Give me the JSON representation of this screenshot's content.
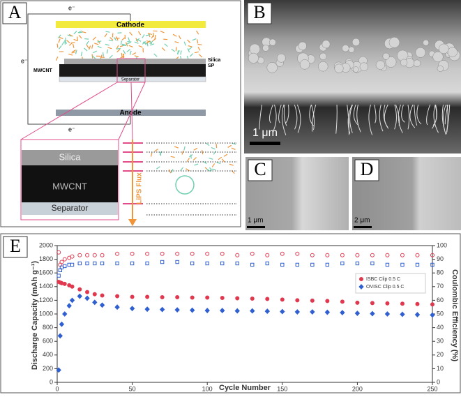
{
  "figure": {
    "panel_a": {
      "label": "A",
      "cathode": "Cathode",
      "anode": "Anode",
      "silica": "Silica",
      "sp": "SP",
      "mwcnt": "MWCNT",
      "separator": "Separator",
      "electrons": [
        "e⁻",
        "e⁻",
        "e⁻"
      ],
      "zoom": {
        "silica": "Silica",
        "mwcnt": "MWCNT",
        "separator": "Separator",
        "flux": "LiPS Flux"
      }
    },
    "panel_b": {
      "label": "B",
      "scale": "1 μm"
    },
    "panel_c": {
      "label": "C",
      "scale": "1 μm"
    },
    "panel_d": {
      "label": "D",
      "scale": "2 μm"
    }
  },
  "chart_data": {
    "type": "scatter",
    "panel_label": "E",
    "x_label": "Cycle Number",
    "y_label": "Discharge Capacity (mAh g⁻¹)",
    "y2_label": "Coulombic Efficiency (%)",
    "x": [
      1,
      2,
      3,
      5,
      8,
      10,
      15,
      20,
      25,
      30,
      40,
      50,
      60,
      70,
      80,
      90,
      100,
      110,
      120,
      130,
      140,
      150,
      160,
      170,
      180,
      190,
      200,
      210,
      220,
      230,
      240,
      250
    ],
    "xlim": [
      0,
      250
    ],
    "xticks": [
      0,
      50,
      100,
      150,
      200,
      250
    ],
    "ylim": [
      0,
      2000
    ],
    "yticks": [
      0,
      200,
      400,
      600,
      800,
      1000,
      1200,
      1400,
      1600,
      1800,
      2000
    ],
    "y2lim": [
      0,
      100
    ],
    "y2ticks": [
      0,
      10,
      20,
      30,
      40,
      50,
      60,
      70,
      80,
      90,
      100
    ],
    "legend": "upper right",
    "series": [
      {
        "name": "ISBC Clip 0.5 C",
        "color": "#e0394f",
        "marker": "circle",
        "values": [
          1470,
          1460,
          1450,
          1440,
          1420,
          1400,
          1360,
          1320,
          1290,
          1270,
          1260,
          1250,
          1250,
          1245,
          1245,
          1240,
          1240,
          1235,
          1230,
          1225,
          1220,
          1210,
          1200,
          1195,
          1190,
          1180,
          1165,
          1160,
          1155,
          1150,
          1145,
          1140
        ]
      },
      {
        "name": "OVISC Clip 0.5 C",
        "color": "#2f5fd0",
        "marker": "diamond",
        "values": [
          180,
          680,
          850,
          1000,
          1120,
          1200,
          1260,
          1230,
          1170,
          1130,
          1100,
          1080,
          1070,
          1065,
          1060,
          1055,
          1050,
          1050,
          1045,
          1045,
          1040,
          1035,
          1030,
          1030,
          1025,
          1020,
          1010,
          1005,
          1000,
          995,
          990,
          985
        ]
      },
      {
        "color": "#e0394f",
        "marker": "circle-open",
        "axis": "y2",
        "values": [
          95,
          86,
          88,
          90,
          91,
          92,
          93,
          93,
          93,
          93,
          94,
          94,
          94,
          94,
          94,
          94,
          94,
          94,
          93,
          94,
          93,
          94,
          94,
          93,
          93,
          93,
          93,
          93,
          93,
          93,
          93,
          93
        ]
      },
      {
        "color": "#2f5fd0",
        "marker": "square-open",
        "axis": "y2",
        "values": [
          78,
          82,
          84,
          85,
          86,
          86,
          87,
          87,
          87,
          87,
          87,
          87,
          87,
          88,
          88,
          87,
          87,
          87,
          87,
          86,
          87,
          86,
          86,
          86,
          86,
          87,
          87,
          87,
          86,
          86,
          86,
          86
        ]
      }
    ]
  }
}
